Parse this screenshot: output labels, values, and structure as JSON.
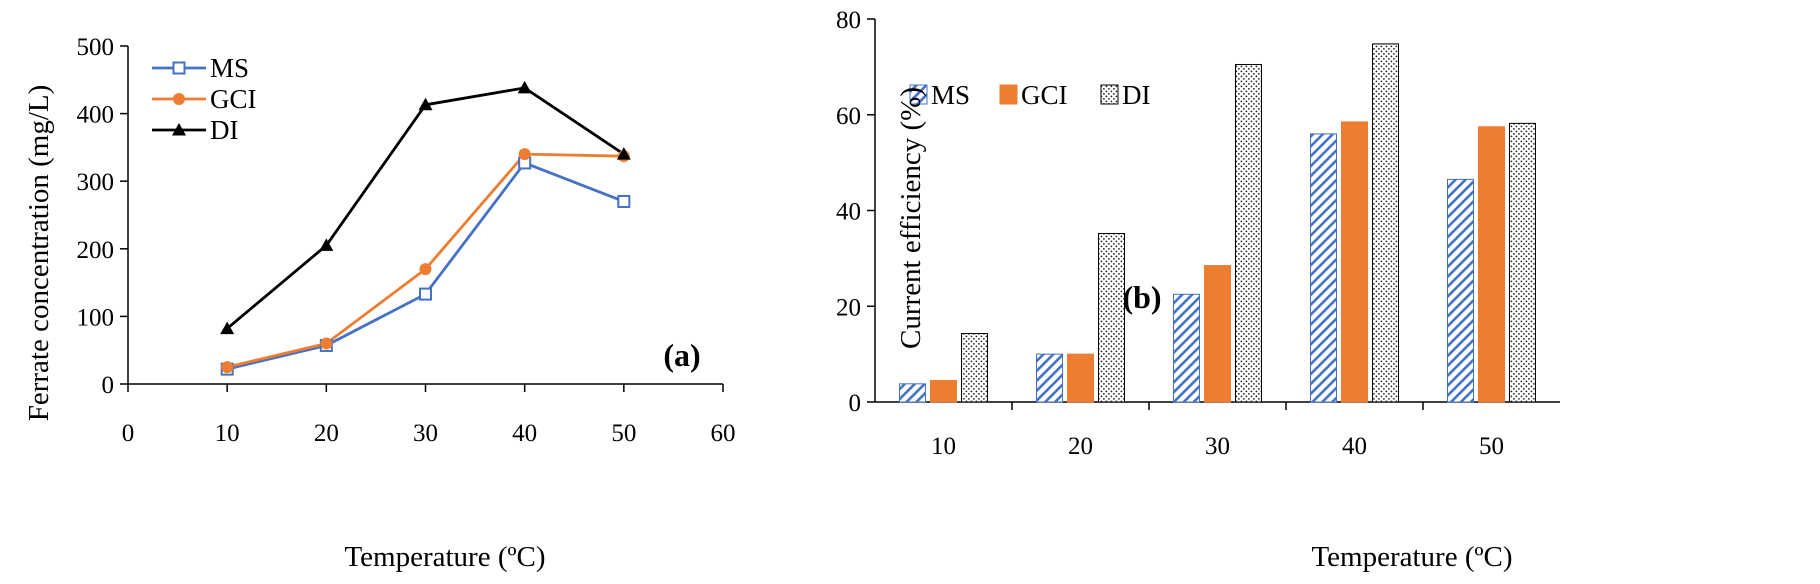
{
  "chart_data": [
    {
      "type": "line",
      "panel_label": "(a)",
      "xlabel": "Temperature (ºC)",
      "ylabel": "Ferrate concentration (mg/L)",
      "xlim": [
        0,
        60
      ],
      "ylim": [
        0,
        500
      ],
      "xticks": [
        "0",
        "10",
        "20",
        "30",
        "40",
        "50",
        "60"
      ],
      "yticks": [
        "0",
        "100",
        "200",
        "300",
        "400",
        "500"
      ],
      "grid": false,
      "legend_position": "top-left",
      "x": [
        10,
        20,
        30,
        40,
        50
      ],
      "series": [
        {
          "name": "MS",
          "values": [
            22,
            57,
            133,
            327,
            270
          ],
          "color": "#4472C4",
          "marker": "open-square"
        },
        {
          "name": "GCI",
          "values": [
            25,
            60,
            170,
            340,
            337
          ],
          "color": "#ED7D31",
          "marker": "filled-circle"
        },
        {
          "name": "DI",
          "values": [
            82,
            205,
            413,
            438,
            340
          ],
          "color": "#000000",
          "marker": "filled-triangle"
        }
      ]
    },
    {
      "type": "bar",
      "panel_label": "(b)",
      "xlabel": "Temperature (ºC)",
      "ylabel": "Current efficiency (%)",
      "ylim": [
        0,
        80
      ],
      "yticks": [
        "0",
        "20",
        "40",
        "60",
        "80"
      ],
      "grid": false,
      "legend_position": "top-left",
      "categories": [
        "10",
        "20",
        "30",
        "40",
        "50"
      ],
      "series": [
        {
          "name": "MS",
          "values": [
            3.8,
            10,
            22.5,
            56,
            46.5
          ],
          "color": "#4472C4",
          "fill": "diagonal-hatch"
        },
        {
          "name": "GCI",
          "values": [
            4.5,
            10,
            28.5,
            58.5,
            57.5
          ],
          "color": "#ED7D31",
          "fill": "solid"
        },
        {
          "name": "DI",
          "values": [
            14.3,
            35.2,
            70.5,
            74.8,
            58.2
          ],
          "color": "#000000",
          "fill": "dotted"
        }
      ]
    }
  ]
}
